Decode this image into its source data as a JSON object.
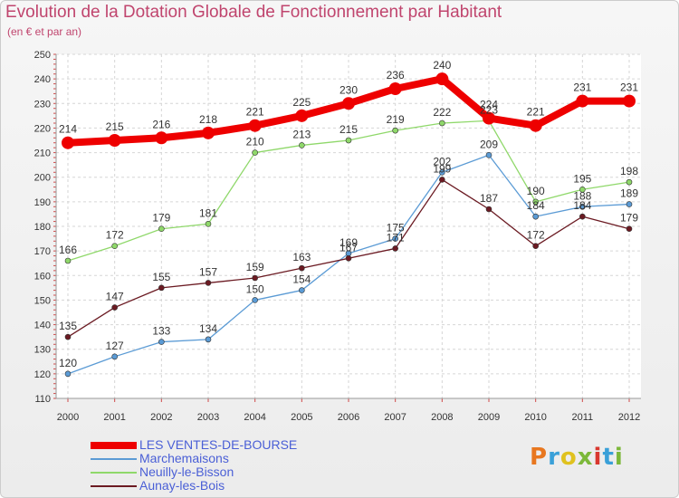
{
  "title": "Evolution de la Dotation Globale de Fonctionnement par Habitant",
  "subtitle": "(en € et par an)",
  "logo": {
    "text": "Proxiti",
    "colors": [
      "#e8771f",
      "#3aa0d8",
      "#e0c21f",
      "#7cb83a",
      "#d9382f",
      "#3aa0d8",
      "#7cb83a"
    ]
  },
  "chart_data": {
    "type": "line",
    "x": [
      "2000",
      "2001",
      "2002",
      "2003",
      "2004",
      "2005",
      "2006",
      "2007",
      "2008",
      "2009",
      "2010",
      "2011",
      "2012"
    ],
    "ylim": [
      110,
      250
    ],
    "yticks": [
      110,
      120,
      130,
      140,
      150,
      160,
      170,
      180,
      190,
      200,
      210,
      220,
      230,
      240,
      250
    ],
    "grid": true,
    "legend_position": "bottom-left",
    "series": [
      {
        "name": "LES VENTES-DE-BOURSE",
        "color": "#ee0000",
        "width": 8,
        "marker": 7,
        "values": [
          214,
          215,
          216,
          218,
          221,
          225,
          230,
          236,
          240,
          224,
          221,
          231,
          231
        ]
      },
      {
        "name": "Marchemaisons",
        "color": "#5b9bd5",
        "width": 1.3,
        "marker": 3,
        "values": [
          120,
          127,
          133,
          134,
          150,
          154,
          169,
          175,
          202,
          209,
          184,
          188,
          189
        ]
      },
      {
        "name": "Neuilly-le-Bisson",
        "color": "#8fd86a",
        "width": 1.3,
        "marker": 3,
        "values": [
          166,
          172,
          179,
          181,
          210,
          213,
          215,
          219,
          222,
          223,
          190,
          195,
          198
        ]
      },
      {
        "name": "Aunay-les-Bois",
        "color": "#6b1a22",
        "width": 1.3,
        "marker": 3,
        "values": [
          135,
          147,
          155,
          157,
          159,
          163,
          167,
          171,
          199,
          187,
          172,
          184,
          179
        ]
      }
    ]
  }
}
